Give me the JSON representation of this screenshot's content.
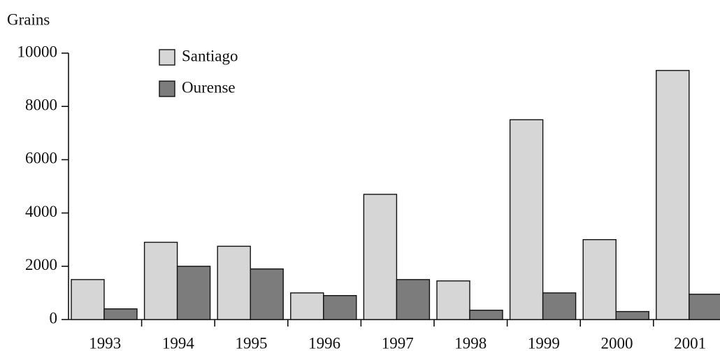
{
  "chart_data": {
    "type": "bar",
    "title": "Grains",
    "categories": [
      "1993",
      "1994",
      "1995",
      "1996",
      "1997",
      "1998",
      "1999",
      "2000",
      "2001"
    ],
    "series": [
      {
        "name": "Santiago",
        "color": "#d6d6d6",
        "values": [
          1500,
          2900,
          2750,
          1000,
          4700,
          1450,
          7500,
          3000,
          9350
        ]
      },
      {
        "name": "Ourense",
        "color": "#7c7c7c",
        "values": [
          400,
          2000,
          1900,
          900,
          1500,
          350,
          1000,
          300,
          950
        ]
      }
    ],
    "ylim": [
      0,
      10000
    ],
    "yticks": [
      0,
      2000,
      4000,
      6000,
      8000,
      10000
    ],
    "grid": false,
    "legend": "top-left"
  }
}
